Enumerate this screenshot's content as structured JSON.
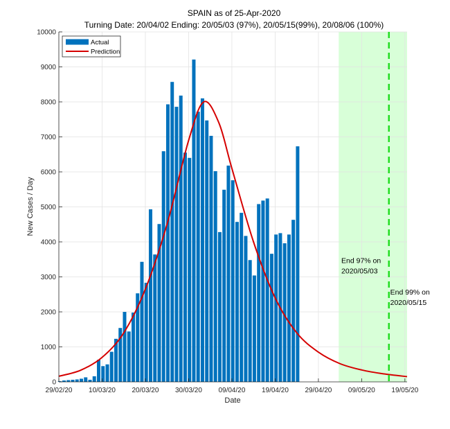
{
  "chart_data": {
    "type": "bar",
    "title": "SPAIN as of 25-Apr-2020",
    "subtitle": "Turning Date: 20/04/02  Ending: 20/05/03 (97%), 20/05/15(99%), 20/08/06 (100%)",
    "xlabel": "Date",
    "ylabel": "New Cases / Day",
    "ylim": [
      0,
      10000
    ],
    "yticks": [
      0,
      1000,
      2000,
      3000,
      4000,
      5000,
      6000,
      7000,
      8000,
      9000,
      10000
    ],
    "xlim_days": [
      0,
      80.5
    ],
    "x_start_date": "29/02/20",
    "xticks": [
      {
        "day": 0,
        "label": "29/02/20"
      },
      {
        "day": 10,
        "label": "10/03/20"
      },
      {
        "day": 20,
        "label": "20/03/20"
      },
      {
        "day": 30,
        "label": "30/03/20"
      },
      {
        "day": 40,
        "label": "09/04/20"
      },
      {
        "day": 50,
        "label": "19/04/20"
      },
      {
        "day": 60,
        "label": "29/04/20"
      },
      {
        "day": 70,
        "label": "09/05/20"
      },
      {
        "day": 80,
        "label": "19/05/20"
      }
    ],
    "grid": true,
    "legend": {
      "position": "top-left",
      "entries": [
        {
          "label": "Actual",
          "color": "#0072BD",
          "kind": "bar"
        },
        {
          "label": "Prediction",
          "color": "#D50000",
          "kind": "line"
        }
      ]
    },
    "series": [
      {
        "name": "Actual",
        "type": "bar",
        "color": "#0072BD",
        "start_day": 0,
        "values": [
          20,
          40,
          50,
          60,
          70,
          90,
          130,
          60,
          160,
          630,
          450,
          500,
          860,
          1230,
          1540,
          2000,
          1440,
          1980,
          2530,
          3430,
          2830,
          4930,
          3640,
          4510,
          6590,
          7930,
          8570,
          7860,
          8180,
          6550,
          6400,
          9210,
          7720,
          8100,
          7470,
          7030,
          6020,
          4280,
          5490,
          6180,
          5760,
          4570,
          4830,
          4170,
          3480,
          3040,
          5080,
          5180,
          5240,
          3660,
          4210,
          4250,
          3960,
          4210,
          4630,
          6730
        ]
      },
      {
        "name": "Prediction",
        "type": "line",
        "color": "#D50000",
        "model": "logistic-derivative",
        "peak_day": 33.5,
        "peak_value": 8000,
        "points": [
          {
            "day": 0,
            "value": 160
          },
          {
            "day": 5,
            "value": 330
          },
          {
            "day": 10,
            "value": 700
          },
          {
            "day": 15,
            "value": 1400
          },
          {
            "day": 20,
            "value": 2650
          },
          {
            "day": 25,
            "value": 4500
          },
          {
            "day": 30,
            "value": 6900
          },
          {
            "day": 33.5,
            "value": 8000
          },
          {
            "day": 37,
            "value": 7400
          },
          {
            "day": 40,
            "value": 6100
          },
          {
            "day": 45,
            "value": 4000
          },
          {
            "day": 50,
            "value": 2400
          },
          {
            "day": 55,
            "value": 1400
          },
          {
            "day": 60,
            "value": 850
          },
          {
            "day": 65,
            "value": 520
          },
          {
            "day": 70,
            "value": 340
          },
          {
            "day": 75,
            "value": 230
          },
          {
            "day": 80.5,
            "value": 150
          }
        ]
      }
    ],
    "shaded_region": {
      "from_day": 64.7,
      "to_day": 80.5,
      "color": "#D8FFD8",
      "meaning": "end 97% to axis limit"
    },
    "vlines": [
      {
        "day": 76.3,
        "color": "#22DD22",
        "style": "dashed",
        "meaning": "End 99%"
      }
    ],
    "annotations": [
      {
        "lines": [
          "End 97% on",
          "2020/05/03"
        ],
        "day": 65.3,
        "value": 3400
      },
      {
        "lines": [
          "End 99% on",
          "2020/05/15"
        ],
        "day": 76.6,
        "value": 2500
      }
    ]
  }
}
